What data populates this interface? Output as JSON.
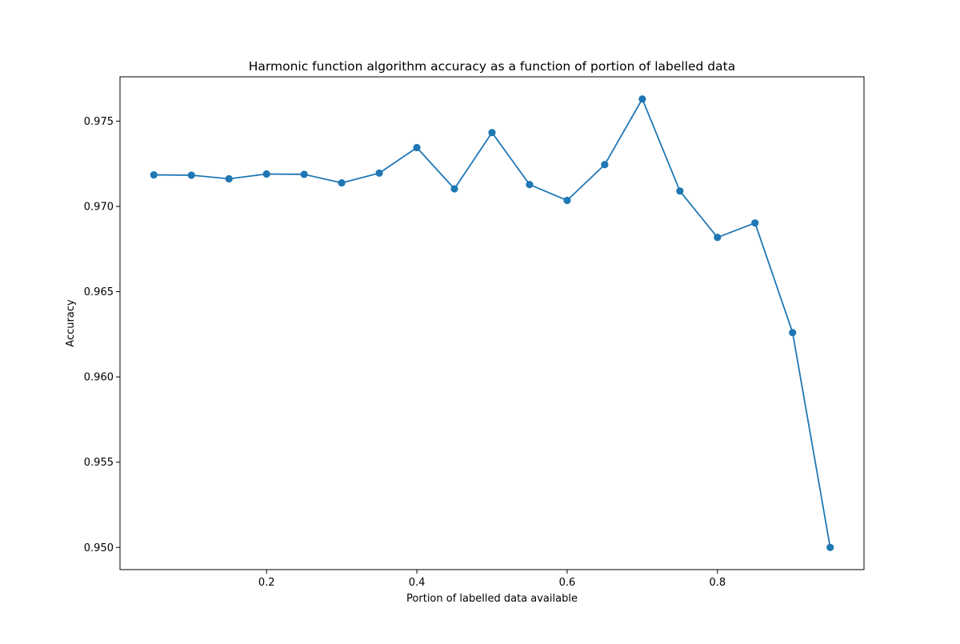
{
  "chart_data": {
    "type": "line",
    "title": "Harmonic function algorithm accuracy as a function of portion of labelled data",
    "xlabel": "Portion of labelled data available",
    "ylabel": "Accuracy",
    "xlim": [
      0.005,
      0.995
    ],
    "ylim": [
      0.9487,
      0.9776
    ],
    "xticks": [
      0.2,
      0.4,
      0.6,
      0.8
    ],
    "xtick_labels": [
      "0.2",
      "0.4",
      "0.6",
      "0.8"
    ],
    "yticks": [
      0.95,
      0.955,
      0.96,
      0.965,
      0.97,
      0.975
    ],
    "ytick_labels": [
      "0.950",
      "0.955",
      "0.960",
      "0.965",
      "0.970",
      "0.975"
    ],
    "grid": false,
    "legend": "none",
    "marker": "circle",
    "series": [
      {
        "color": "#1f77b4",
        "x": [
          0.05,
          0.1,
          0.15,
          0.2,
          0.25,
          0.3,
          0.35,
          0.4,
          0.45,
          0.5,
          0.55,
          0.6,
          0.65,
          0.7,
          0.75,
          0.8,
          0.85,
          0.9,
          0.95
        ],
        "y": [
          0.97185,
          0.97183,
          0.97162,
          0.9719,
          0.97188,
          0.97138,
          0.97195,
          0.97345,
          0.97103,
          0.97433,
          0.97128,
          0.97035,
          0.97245,
          0.9763,
          0.9709,
          0.96818,
          0.96903,
          0.9626,
          0.95
        ]
      }
    ]
  }
}
